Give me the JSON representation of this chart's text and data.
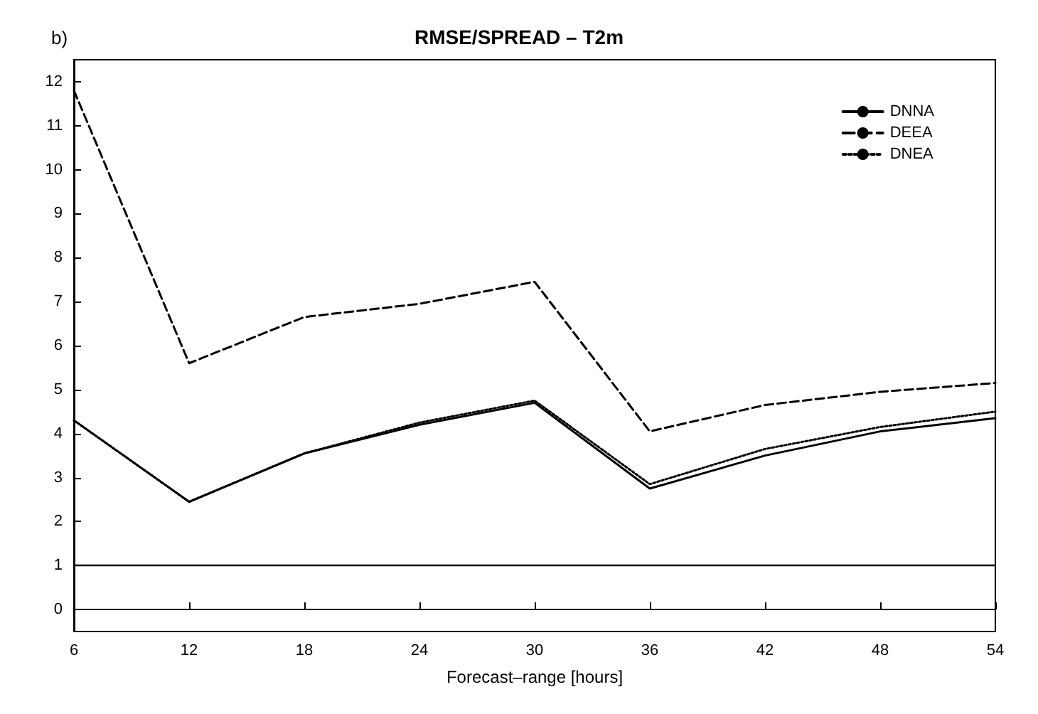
{
  "chart_data": {
    "type": "line",
    "title": "RMSE/SPREAD – T2m",
    "xlabel": "Forecast–range [hours]",
    "annotations": [
      "b)"
    ],
    "x": [
      6,
      12,
      18,
      24,
      30,
      36,
      42,
      48,
      54
    ],
    "series": [
      {
        "name": "DNNA",
        "color": "#000000",
        "line_style": "solid",
        "values": [
          4.3,
          2.45,
          3.55,
          4.2,
          4.7,
          2.75,
          3.5,
          4.05,
          4.35
        ]
      },
      {
        "name": "DEEA",
        "color": "#000000",
        "line_style": "dashed",
        "values": [
          11.8,
          5.6,
          6.65,
          6.95,
          7.45,
          4.05,
          4.65,
          4.95,
          5.15
        ]
      },
      {
        "name": "DNEA",
        "color": "#000000",
        "line_style": "dotted",
        "values": [
          4.3,
          2.45,
          3.55,
          4.25,
          4.75,
          2.85,
          3.65,
          4.15,
          4.5
        ]
      }
    ],
    "xlim": [
      6,
      54
    ],
    "xticks": [
      6,
      12,
      18,
      24,
      30,
      36,
      42,
      48,
      54
    ],
    "ylim": [
      -0.5,
      12.5
    ],
    "yticks": [
      0,
      1,
      2,
      3,
      4,
      5,
      6,
      7,
      8,
      9,
      10,
      11,
      12
    ],
    "ref_lines": [
      {
        "axis": "y",
        "value": 1,
        "color": "#000000",
        "line_style": "solid"
      }
    ],
    "grid": false,
    "legend": "top right",
    "marker": "none"
  }
}
